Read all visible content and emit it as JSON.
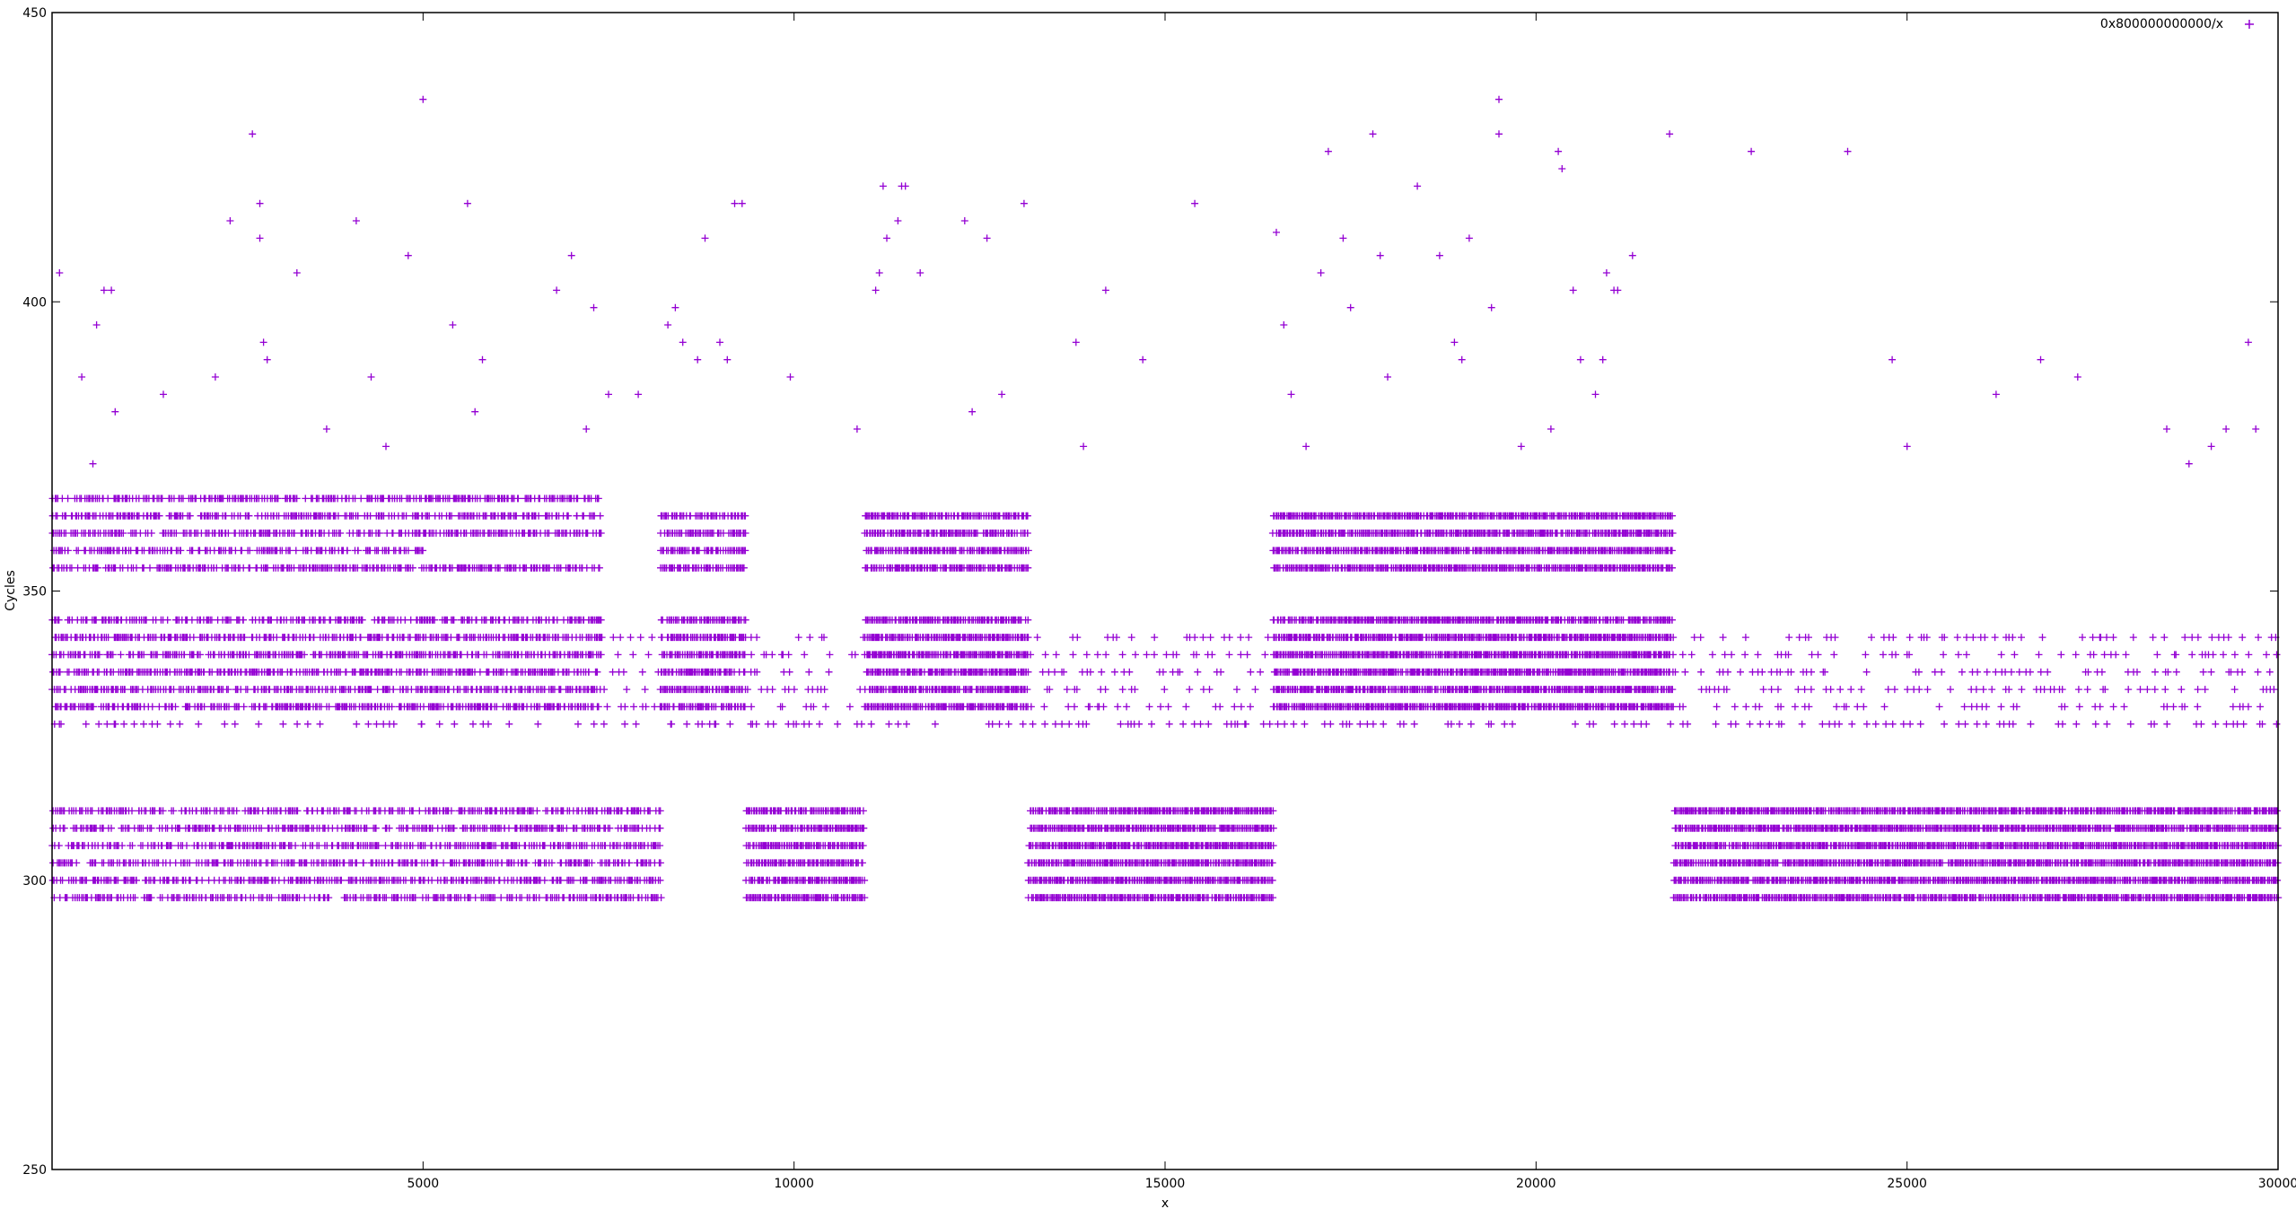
{
  "chart_data": {
    "type": "scatter",
    "title": "",
    "xlabel": "x",
    "ylabel": "Cycles",
    "xlim": [
      0,
      30000
    ],
    "ylim": [
      250,
      450
    ],
    "xticks": [
      5000,
      10000,
      15000,
      20000,
      25000,
      30000
    ],
    "yticks": [
      250,
      300,
      350,
      400,
      450
    ],
    "grid": false,
    "legend_position": "top-right",
    "series": [
      {
        "name": "0x800000000000/x",
        "color": "#9400d3",
        "marker": "plus",
        "bands": [
          {
            "x_range": [
              0,
              5000
            ],
            "levels": [
              297,
              300,
              303,
              306,
              309,
              312,
              330,
              333,
              336,
              339,
              342,
              345,
              354,
              357,
              360,
              363,
              366
            ],
            "density": 0.55
          },
          {
            "x_range": [
              5000,
              7400
            ],
            "levels": [
              297,
              300,
              303,
              306,
              309,
              312,
              330,
              333,
              336,
              339,
              342,
              345,
              354,
              360,
              363,
              366
            ],
            "density": 0.6
          },
          {
            "x_range": [
              7400,
              8200
            ],
            "levels": [
              297,
              300,
              303,
              306,
              309,
              312
            ],
            "density": 0.6
          },
          {
            "x_range": [
              8200,
              9350
            ],
            "levels": [
              330,
              333,
              336,
              339,
              342,
              345,
              354,
              357,
              360,
              363
            ],
            "density": 0.8
          },
          {
            "x_range": [
              9350,
              10950
            ],
            "levels": [
              297,
              300,
              303,
              306,
              309,
              312
            ],
            "density": 0.9
          },
          {
            "x_range": [
              10950,
              13150
            ],
            "levels": [
              330,
              333,
              336,
              339,
              342,
              345,
              354,
              357,
              360,
              363
            ],
            "density": 0.9
          },
          {
            "x_range": [
              13150,
              16450
            ],
            "levels": [
              297,
              300,
              303,
              306,
              309,
              312
            ],
            "density": 0.95
          },
          {
            "x_range": [
              16450,
              21850
            ],
            "levels": [
              330,
              333,
              336,
              339,
              342,
              345,
              354,
              357,
              360,
              363
            ],
            "density": 0.95
          },
          {
            "x_range": [
              21850,
              30000
            ],
            "levels": [
              297,
              300,
              303,
              306,
              309,
              312
            ],
            "density": 0.95
          }
        ],
        "sparse_levels": [
          327,
          330,
          333,
          336,
          339,
          342
        ],
        "outliers": [
          [
            100,
            405
          ],
          [
            400,
            387
          ],
          [
            600,
            396
          ],
          [
            550,
            372
          ],
          [
            700,
            402
          ],
          [
            800,
            402
          ],
          [
            850,
            381
          ],
          [
            1500,
            384
          ],
          [
            2200,
            387
          ],
          [
            2400,
            414
          ],
          [
            2700,
            429
          ],
          [
            2800,
            411
          ],
          [
            2800,
            417
          ],
          [
            2850,
            393
          ],
          [
            2900,
            390
          ],
          [
            3300,
            405
          ],
          [
            3700,
            378
          ],
          [
            4100,
            414
          ],
          [
            4300,
            387
          ],
          [
            4500,
            375
          ],
          [
            4800,
            408
          ],
          [
            5000,
            435
          ],
          [
            5400,
            396
          ],
          [
            5600,
            417
          ],
          [
            5700,
            381
          ],
          [
            5800,
            390
          ],
          [
            6800,
            402
          ],
          [
            7000,
            408
          ],
          [
            7200,
            378
          ],
          [
            7300,
            399
          ],
          [
            7500,
            384
          ],
          [
            7900,
            384
          ],
          [
            8300,
            396
          ],
          [
            8400,
            399
          ],
          [
            8500,
            393
          ],
          [
            8700,
            390
          ],
          [
            8800,
            411
          ],
          [
            9000,
            393
          ],
          [
            9100,
            390
          ],
          [
            9200,
            417
          ],
          [
            9300,
            417
          ],
          [
            9950,
            387
          ],
          [
            10850,
            378
          ],
          [
            11100,
            402
          ],
          [
            11150,
            405
          ],
          [
            11200,
            420
          ],
          [
            11250,
            411
          ],
          [
            11400,
            414
          ],
          [
            11450,
            420
          ],
          [
            11500,
            420
          ],
          [
            11700,
            405
          ],
          [
            12300,
            414
          ],
          [
            12400,
            381
          ],
          [
            12600,
            411
          ],
          [
            12800,
            384
          ],
          [
            13100,
            417
          ],
          [
            13800,
            393
          ],
          [
            13900,
            375
          ],
          [
            14200,
            402
          ],
          [
            14700,
            390
          ],
          [
            15400,
            417
          ],
          [
            16500,
            412
          ],
          [
            16600,
            396
          ],
          [
            16700,
            384
          ],
          [
            16900,
            375
          ],
          [
            17100,
            405
          ],
          [
            17200,
            426
          ],
          [
            17400,
            411
          ],
          [
            17500,
            399
          ],
          [
            17800,
            429
          ],
          [
            17900,
            408
          ],
          [
            18000,
            387
          ],
          [
            18400,
            420
          ],
          [
            18700,
            408
          ],
          [
            18900,
            393
          ],
          [
            19000,
            390
          ],
          [
            19100,
            411
          ],
          [
            19400,
            399
          ],
          [
            19500,
            435
          ],
          [
            19500,
            429
          ],
          [
            19800,
            375
          ],
          [
            20200,
            378
          ],
          [
            20300,
            426
          ],
          [
            20350,
            423
          ],
          [
            20500,
            402
          ],
          [
            20600,
            390
          ],
          [
            20800,
            384
          ],
          [
            20900,
            390
          ],
          [
            20950,
            405
          ],
          [
            21050,
            402
          ],
          [
            21100,
            402
          ],
          [
            21300,
            408
          ],
          [
            21800,
            429
          ],
          [
            22900,
            426
          ],
          [
            24200,
            426
          ],
          [
            24800,
            390
          ],
          [
            25000,
            375
          ],
          [
            26200,
            384
          ],
          [
            26800,
            390
          ],
          [
            27300,
            387
          ],
          [
            28500,
            378
          ],
          [
            28800,
            372
          ],
          [
            29100,
            375
          ],
          [
            29300,
            378
          ],
          [
            29600,
            393
          ],
          [
            29700,
            378
          ]
        ]
      }
    ]
  }
}
